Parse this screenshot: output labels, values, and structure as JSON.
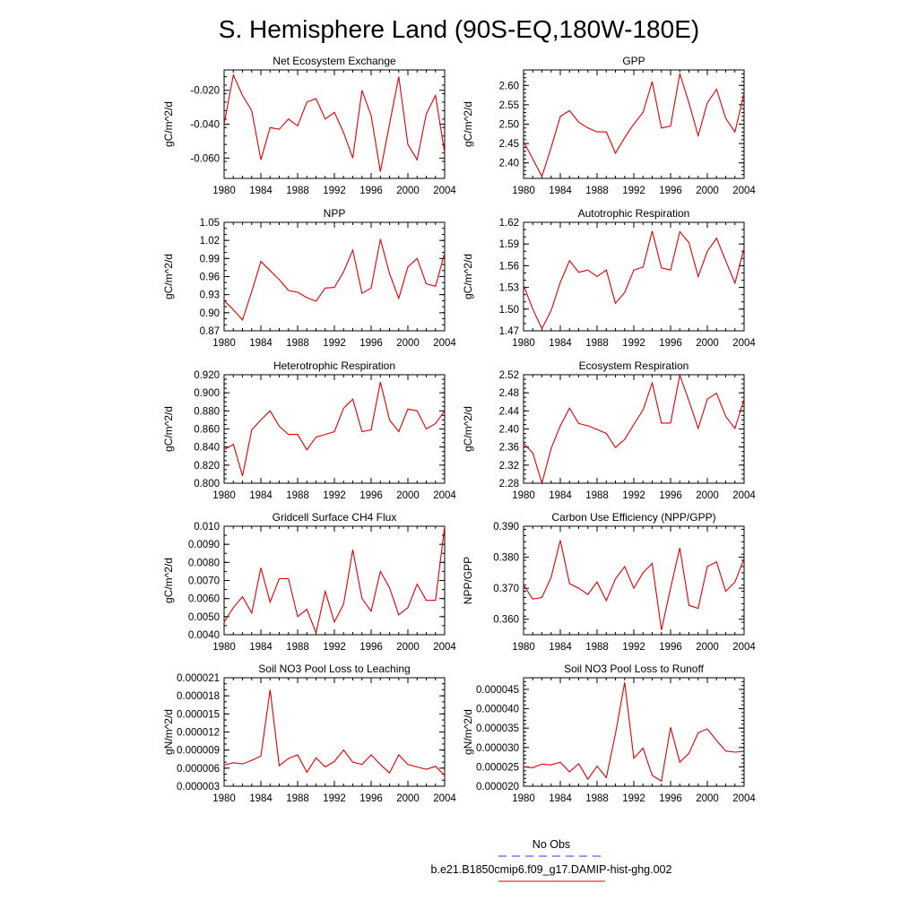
{
  "figure": {
    "title": "S. Hemisphere Land (90S-EQ,180W-180E)",
    "legend": [
      {
        "label": "No Obs",
        "color": "#3030e0",
        "dash": true
      },
      {
        "label": "b.e21.B1850cmip6.f09_g17.DAMIP-hist-ghg.002",
        "color": "#e00000",
        "dash": false
      }
    ]
  },
  "chart_data": [
    {
      "type": "line",
      "title": "Net Ecosystem Exchange",
      "ylabel": "gC/m^2/d",
      "x_ticks": [
        1980,
        1984,
        1988,
        1992,
        1996,
        2000,
        2004
      ],
      "xlim": [
        1980,
        2004
      ],
      "y_ticks": [
        -0.06,
        -0.04,
        -0.02
      ],
      "y_tick_labels": [
        "-0.060",
        "-0.040",
        "-0.020"
      ],
      "ylim": [
        -0.072,
        -0.008
      ],
      "y_minor": 0.005,
      "series": [
        {
          "color": "#e00000",
          "x": [
            1980,
            1981,
            1982,
            1983,
            1984,
            1985,
            1986,
            1987,
            1988,
            1989,
            1990,
            1991,
            1992,
            1993,
            1994,
            1995,
            1996,
            1997,
            1998,
            1999,
            2000,
            2001,
            2002,
            2003,
            2004
          ],
          "values": [
            -0.04,
            -0.011,
            -0.023,
            -0.032,
            -0.061,
            -0.042,
            -0.043,
            -0.037,
            -0.041,
            -0.027,
            -0.025,
            -0.037,
            -0.033,
            -0.045,
            -0.06,
            -0.02,
            -0.035,
            -0.068,
            -0.04,
            -0.012,
            -0.052,
            -0.061,
            -0.034,
            -0.023,
            -0.057
          ]
        }
      ]
    },
    {
      "type": "line",
      "title": "GPP",
      "ylabel": "gC/m^2/d",
      "x_ticks": [
        1980,
        1984,
        1988,
        1992,
        1996,
        2000,
        2004
      ],
      "xlim": [
        1980,
        2004
      ],
      "y_ticks": [
        2.4,
        2.45,
        2.5,
        2.55,
        2.6
      ],
      "y_tick_labels": [
        "2.40",
        "2.45",
        "2.50",
        "2.55",
        "2.60"
      ],
      "ylim": [
        2.36,
        2.64
      ],
      "y_minor": 0.01,
      "series": [
        {
          "color": "#e00000",
          "x": [
            1980,
            1981,
            1982,
            1983,
            1984,
            1985,
            1986,
            1987,
            1988,
            1989,
            1990,
            1991,
            1992,
            1993,
            1994,
            1995,
            1996,
            1997,
            1998,
            1999,
            2000,
            2001,
            2002,
            2003,
            2004
          ],
          "values": [
            2.455,
            2.41,
            2.365,
            2.44,
            2.52,
            2.535,
            2.505,
            2.49,
            2.48,
            2.48,
            2.425,
            2.465,
            2.5,
            2.53,
            2.61,
            2.49,
            2.495,
            2.63,
            2.555,
            2.47,
            2.555,
            2.59,
            2.515,
            2.48,
            2.58
          ]
        }
      ]
    },
    {
      "type": "line",
      "title": "NPP",
      "ylabel": "gC/m^2/d",
      "x_ticks": [
        1980,
        1984,
        1988,
        1992,
        1996,
        2000,
        2004
      ],
      "xlim": [
        1980,
        2004
      ],
      "y_ticks": [
        0.87,
        0.9,
        0.93,
        0.96,
        0.99,
        1.02,
        1.05
      ],
      "y_tick_labels": [
        "0.87",
        "0.90",
        "0.93",
        "0.96",
        "0.99",
        "1.02",
        "1.05"
      ],
      "ylim": [
        0.87,
        1.05
      ],
      "y_minor": 0.01,
      "series": [
        {
          "color": "#e00000",
          "x": [
            1980,
            1981,
            1982,
            1983,
            1984,
            1985,
            1986,
            1987,
            1988,
            1989,
            1990,
            1991,
            1992,
            1993,
            1994,
            1995,
            1996,
            1997,
            1998,
            1999,
            2000,
            2001,
            2002,
            2003,
            2004
          ],
          "values": [
            0.92,
            0.905,
            0.888,
            0.935,
            0.985,
            0.97,
            0.955,
            0.937,
            0.934,
            0.925,
            0.919,
            0.941,
            0.942,
            0.968,
            1.004,
            0.932,
            0.941,
            1.022,
            0.965,
            0.924,
            0.976,
            0.99,
            0.948,
            0.944,
            0.999
          ]
        }
      ]
    },
    {
      "type": "line",
      "title": "Autotrophic Respiration",
      "ylabel": "gC/m^2/d",
      "x_ticks": [
        1980,
        1984,
        1988,
        1992,
        1996,
        2000,
        2004
      ],
      "xlim": [
        1980,
        2004
      ],
      "y_ticks": [
        1.47,
        1.5,
        1.53,
        1.56,
        1.59,
        1.62
      ],
      "y_tick_labels": [
        "1.47",
        "1.50",
        "1.53",
        "1.56",
        "1.59",
        "1.62"
      ],
      "ylim": [
        1.47,
        1.62
      ],
      "y_minor": 0.01,
      "series": [
        {
          "color": "#e00000",
          "x": [
            1980,
            1981,
            1982,
            1983,
            1984,
            1985,
            1986,
            1987,
            1988,
            1989,
            1990,
            1991,
            1992,
            1993,
            1994,
            1995,
            1996,
            1997,
            1998,
            1999,
            2000,
            2001,
            2002,
            2003,
            2004
          ],
          "values": [
            1.533,
            1.5,
            1.473,
            1.498,
            1.537,
            1.567,
            1.551,
            1.554,
            1.545,
            1.554,
            1.508,
            1.523,
            1.554,
            1.558,
            1.608,
            1.557,
            1.554,
            1.607,
            1.592,
            1.545,
            1.58,
            1.598,
            1.567,
            1.536,
            1.584
          ]
        }
      ]
    },
    {
      "type": "line",
      "title": "Heterotrophic Respiration",
      "ylabel": "gC/m^2/d",
      "x_ticks": [
        1980,
        1984,
        1988,
        1992,
        1996,
        2000,
        2004
      ],
      "xlim": [
        1980,
        2004
      ],
      "y_ticks": [
        0.8,
        0.82,
        0.84,
        0.86,
        0.88,
        0.9,
        0.92
      ],
      "y_tick_labels": [
        "0.800",
        "0.820",
        "0.840",
        "0.860",
        "0.880",
        "0.900",
        "0.920"
      ],
      "ylim": [
        0.8,
        0.92
      ],
      "y_minor": 0.005,
      "series": [
        {
          "color": "#e00000",
          "x": [
            1980,
            1981,
            1982,
            1983,
            1984,
            1985,
            1986,
            1987,
            1988,
            1989,
            1990,
            1991,
            1992,
            1993,
            1994,
            1995,
            1996,
            1997,
            1998,
            1999,
            2000,
            2001,
            2002,
            2003,
            2004
          ],
          "values": [
            0.837,
            0.843,
            0.808,
            0.859,
            0.87,
            0.88,
            0.863,
            0.854,
            0.854,
            0.837,
            0.851,
            0.854,
            0.857,
            0.883,
            0.893,
            0.857,
            0.859,
            0.912,
            0.87,
            0.857,
            0.882,
            0.88,
            0.86,
            0.866,
            0.88
          ]
        }
      ]
    },
    {
      "type": "line",
      "title": "Ecosystem Respiration",
      "ylabel": "gC/m^2/d",
      "x_ticks": [
        1980,
        1984,
        1988,
        1992,
        1996,
        2000,
        2004
      ],
      "xlim": [
        1980,
        2004
      ],
      "y_ticks": [
        2.28,
        2.32,
        2.36,
        2.4,
        2.44,
        2.48,
        2.52
      ],
      "y_tick_labels": [
        "2.28",
        "2.32",
        "2.36",
        "2.40",
        "2.44",
        "2.48",
        "2.52"
      ],
      "ylim": [
        2.28,
        2.52
      ],
      "y_minor": 0.01,
      "series": [
        {
          "color": "#e00000",
          "x": [
            1980,
            1981,
            1982,
            1983,
            1984,
            1985,
            1986,
            1987,
            1988,
            1989,
            1990,
            1991,
            1992,
            1993,
            1994,
            1995,
            1996,
            1997,
            1998,
            1999,
            2000,
            2001,
            2002,
            2003,
            2004
          ],
          "values": [
            2.368,
            2.347,
            2.28,
            2.357,
            2.407,
            2.446,
            2.412,
            2.407,
            2.399,
            2.39,
            2.359,
            2.377,
            2.41,
            2.442,
            2.502,
            2.413,
            2.413,
            2.519,
            2.462,
            2.401,
            2.466,
            2.479,
            2.428,
            2.401,
            2.466
          ]
        }
      ]
    },
    {
      "type": "line",
      "title": "Gridcell Surface CH4 Flux",
      "ylabel": "gC/m^2/d",
      "x_ticks": [
        1980,
        1984,
        1988,
        1992,
        1996,
        2000,
        2004
      ],
      "xlim": [
        1980,
        2004
      ],
      "y_ticks": [
        0.004,
        0.005,
        0.006,
        0.007,
        0.008,
        0.009,
        0.01
      ],
      "y_tick_labels": [
        "0.0040",
        "0.0050",
        "0.0060",
        "0.0070",
        "0.0080",
        "0.0090",
        "0.010"
      ],
      "ylim": [
        0.004,
        0.01
      ],
      "y_minor": 0.0005,
      "series": [
        {
          "color": "#e00000",
          "x": [
            1980,
            1981,
            1982,
            1983,
            1984,
            1985,
            1986,
            1987,
            1988,
            1989,
            1990,
            1991,
            1992,
            1993,
            1994,
            1995,
            1996,
            1997,
            1998,
            1999,
            2000,
            2001,
            2002,
            2003,
            2004
          ],
          "values": [
            0.0047,
            0.0055,
            0.0061,
            0.0052,
            0.0077,
            0.0058,
            0.0071,
            0.0071,
            0.005,
            0.0054,
            0.0041,
            0.0064,
            0.0047,
            0.0057,
            0.0087,
            0.006,
            0.0053,
            0.0075,
            0.0066,
            0.0051,
            0.0055,
            0.0068,
            0.0059,
            0.0059,
            0.01
          ]
        }
      ]
    },
    {
      "type": "line",
      "title": "Carbon Use Efficiency (NPP/GPP)",
      "ylabel": "NPP/GPP",
      "x_ticks": [
        1980,
        1984,
        1988,
        1992,
        1996,
        2000,
        2004
      ],
      "xlim": [
        1980,
        2004
      ],
      "y_ticks": [
        0.36,
        0.37,
        0.38,
        0.39
      ],
      "y_tick_labels": [
        "0.360",
        "0.370",
        "0.380",
        "0.390"
      ],
      "ylim": [
        0.355,
        0.39
      ],
      "y_minor": 0.002,
      "series": [
        {
          "color": "#e00000",
          "x": [
            1980,
            1981,
            1982,
            1983,
            1984,
            1985,
            1986,
            1987,
            1988,
            1989,
            1990,
            1991,
            1992,
            1993,
            1994,
            1995,
            1996,
            1997,
            1998,
            1999,
            2000,
            2001,
            2002,
            2003,
            2004
          ],
          "values": [
            0.371,
            0.3665,
            0.367,
            0.3735,
            0.3855,
            0.3715,
            0.37,
            0.368,
            0.372,
            0.366,
            0.373,
            0.377,
            0.37,
            0.375,
            0.378,
            0.3565,
            0.37,
            0.383,
            0.3645,
            0.3635,
            0.377,
            0.3785,
            0.369,
            0.372,
            0.3795
          ]
        }
      ]
    },
    {
      "type": "line",
      "title": "Soil NO3 Pool Loss to Leaching",
      "ylabel": "gN/m^2/d",
      "x_ticks": [
        1980,
        1984,
        1988,
        1992,
        1996,
        2000,
        2004
      ],
      "xlim": [
        1980,
        2004
      ],
      "y_ticks": [
        3e-06,
        6e-06,
        9e-06,
        1.2e-05,
        1.5e-05,
        1.8e-05,
        2.1e-05
      ],
      "y_tick_labels": [
        "0.000003",
        "0.000006",
        "0.000009",
        "0.000012",
        "0.000015",
        "0.000018",
        "0.000021"
      ],
      "ylim": [
        3e-06,
        2.1e-05
      ],
      "y_minor": 1e-06,
      "series": [
        {
          "color": "#e00000",
          "x": [
            1980,
            1981,
            1982,
            1983,
            1984,
            1985,
            1986,
            1987,
            1988,
            1989,
            1990,
            1991,
            1992,
            1993,
            1994,
            1995,
            1996,
            1997,
            1998,
            1999,
            2000,
            2001,
            2002,
            2003,
            2004
          ],
          "values": [
            6.5e-06,
            6.9e-06,
            6.7e-06,
            7.3e-06,
            8e-06,
            1.9e-05,
            6.4e-06,
            7.6e-06,
            8.2e-06,
            5.3e-06,
            7.7e-06,
            6.2e-06,
            7.1e-06,
            9e-06,
            7e-06,
            6.6e-06,
            8.2e-06,
            6.6e-06,
            5.2e-06,
            8.2e-06,
            6.6e-06,
            6.2e-06,
            5.8e-06,
            6.3e-06,
            4.8e-06
          ]
        }
      ]
    },
    {
      "type": "line",
      "title": "Soil NO3 Pool Loss to Runoff",
      "ylabel": "gN/m^2/d",
      "x_ticks": [
        1980,
        1984,
        1988,
        1992,
        1996,
        2000,
        2004
      ],
      "xlim": [
        1980,
        2004
      ],
      "y_ticks": [
        2e-05,
        2.5e-05,
        3e-05,
        3.5e-05,
        4e-05,
        4.5e-05
      ],
      "y_tick_labels": [
        "0.000020",
        "0.000025",
        "0.000030",
        "0.000035",
        "0.000040",
        "0.000045"
      ],
      "ylim": [
        2e-05,
        4.8e-05
      ],
      "y_minor": 1e-06,
      "series": [
        {
          "color": "#e00000",
          "x": [
            1980,
            1981,
            1982,
            1983,
            1984,
            1985,
            1986,
            1987,
            1988,
            1989,
            1990,
            1991,
            1992,
            1993,
            1994,
            1995,
            1996,
            1997,
            1998,
            1999,
            2000,
            2001,
            2002,
            2003,
            2004
          ],
          "values": [
            2.5e-05,
            2.48e-05,
            2.57e-05,
            2.55e-05,
            2.62e-05,
            2.37e-05,
            2.58e-05,
            2.18e-05,
            2.52e-05,
            2.22e-05,
            3.35e-05,
            4.68e-05,
            2.72e-05,
            2.98e-05,
            2.28e-05,
            2.13e-05,
            3.52e-05,
            2.62e-05,
            2.85e-05,
            3.38e-05,
            3.48e-05,
            3.18e-05,
            2.91e-05,
            2.88e-05,
            2.9e-05
          ]
        }
      ]
    }
  ]
}
